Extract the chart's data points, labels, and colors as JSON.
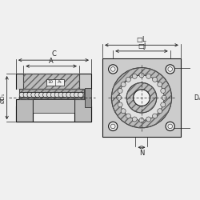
{
  "bg_color": "#f0f0f0",
  "line_color": "#1a1a1a",
  "hatch_color": "#666666",
  "dim_color": "#222222",
  "fig_width": 2.5,
  "fig_height": 2.5,
  "dpi": 100,
  "labels": {
    "C": "C",
    "A": "A",
    "A1": "A₁",
    "10": "10",
    "OD1": "ØD₁",
    "DL": "□L",
    "DJ": "□J",
    "Ds": "Dₛ",
    "N": "N"
  }
}
